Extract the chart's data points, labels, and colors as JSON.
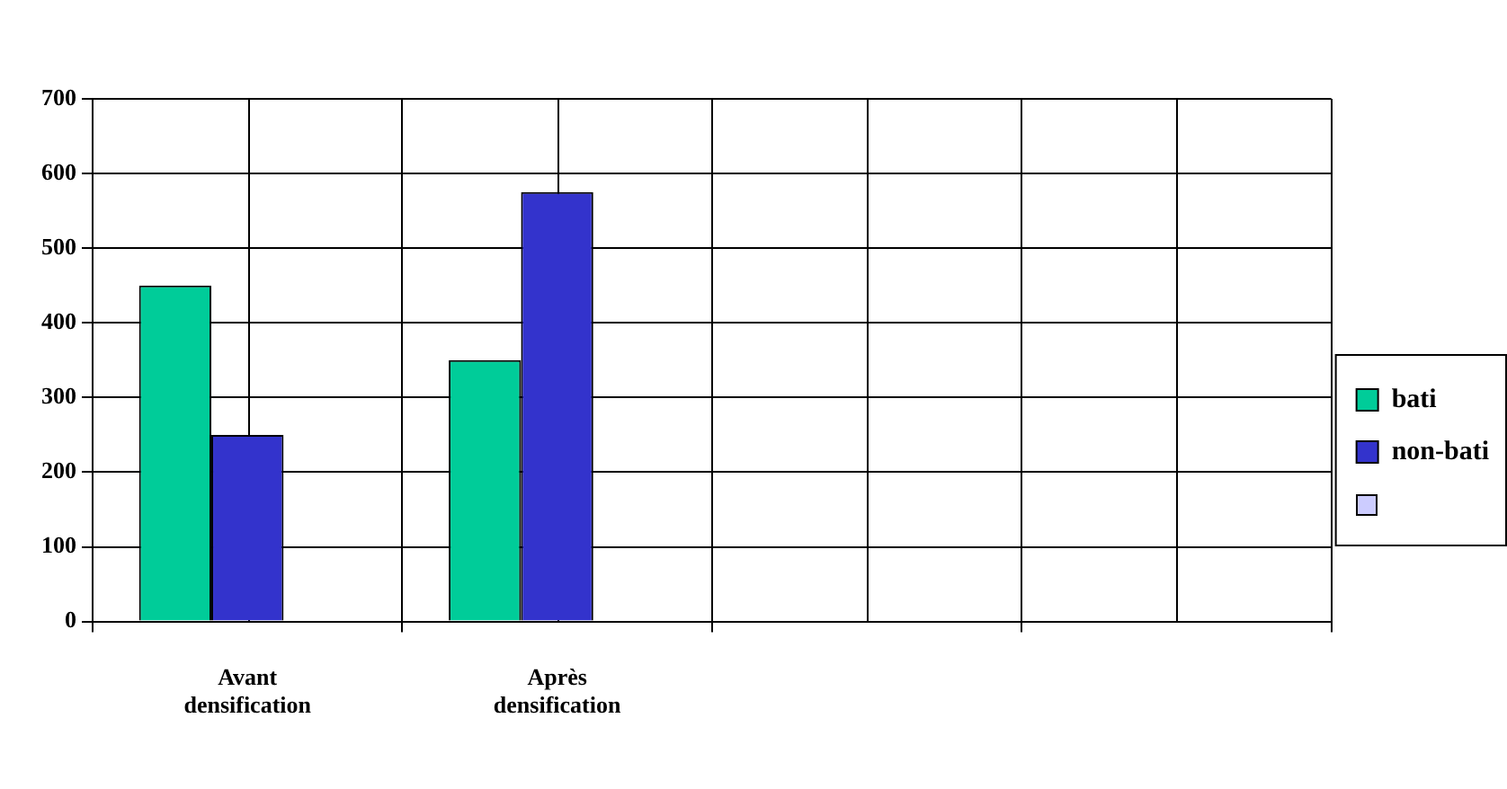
{
  "chart_data": {
    "type": "bar",
    "categories": [
      "Avant densification",
      "Après densification",
      null,
      null
    ],
    "series": [
      {
        "name": "bati",
        "color": "#00cc99",
        "values": [
          450,
          350,
          null,
          null
        ]
      },
      {
        "name": "non-bati",
        "color": "#3333cc",
        "values": [
          250,
          575,
          null,
          null
        ]
      },
      {
        "color": "#ccccff",
        "values": [
          null,
          null,
          null,
          null
        ]
      }
    ],
    "ylim": [
      0,
      700
    ],
    "yticks": [
      0,
      100,
      200,
      300,
      400,
      500,
      600,
      700
    ],
    "grid": true,
    "legend": "right"
  }
}
